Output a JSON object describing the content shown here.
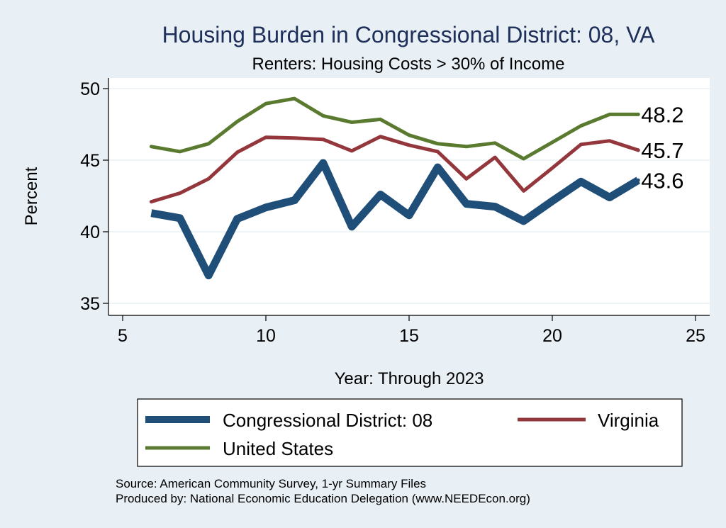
{
  "chart_data": {
    "type": "line",
    "title": "Housing Burden in Congressional District:  08, VA",
    "subtitle": "Renters: Housing Costs > 30% of Income",
    "xlabel": "Year: Through 2023",
    "ylabel": "Percent",
    "xlim": [
      5,
      25
    ],
    "ylim": [
      35,
      50
    ],
    "xticks": [
      5,
      10,
      15,
      20,
      25
    ],
    "yticks": [
      35,
      40,
      45,
      50
    ],
    "grid": true,
    "series": [
      {
        "name": "Congressional District:  08",
        "color": "#1f4e79",
        "x": [
          6,
          7,
          8,
          9,
          10,
          11,
          12,
          13,
          14,
          15,
          16,
          17,
          18,
          19,
          20,
          21,
          22,
          23
        ],
        "values": [
          41.3,
          40.95,
          36.95,
          40.9,
          41.7,
          42.2,
          44.8,
          40.35,
          42.6,
          41.15,
          44.5,
          41.95,
          41.75,
          40.75,
          42.15,
          43.5,
          42.4,
          43.6
        ],
        "end_label": "43.6"
      },
      {
        "name": "Virginia",
        "color": "#94373c",
        "x": [
          6,
          7,
          8,
          9,
          10,
          11,
          12,
          13,
          14,
          15,
          16,
          17,
          18,
          19,
          20,
          21,
          22,
          23
        ],
        "values": [
          42.1,
          42.7,
          43.7,
          45.55,
          46.6,
          46.55,
          46.45,
          45.65,
          46.65,
          46.05,
          45.6,
          43.7,
          45.2,
          42.85,
          44.45,
          46.1,
          46.35,
          45.7
        ],
        "end_label": "45.7"
      },
      {
        "name": "United States",
        "color": "#5a7a30",
        "x": [
          6,
          7,
          8,
          9,
          10,
          11,
          12,
          13,
          14,
          15,
          16,
          17,
          18,
          19,
          20,
          21,
          22,
          23
        ],
        "values": [
          45.95,
          45.6,
          46.15,
          47.7,
          48.95,
          49.3,
          48.1,
          47.65,
          47.85,
          46.75,
          46.15,
          45.95,
          46.2,
          45.1,
          46.25,
          47.4,
          48.2,
          48.2
        ],
        "end_label": "48.2"
      }
    ],
    "legend": [
      "Congressional District:  08",
      "Virginia",
      "United States"
    ]
  },
  "source": "Source: American Community Survey, 1-yr Summary Files",
  "produced_by": "Produced by: National Economic Education Delegation (www.NEEDEcon.org)"
}
